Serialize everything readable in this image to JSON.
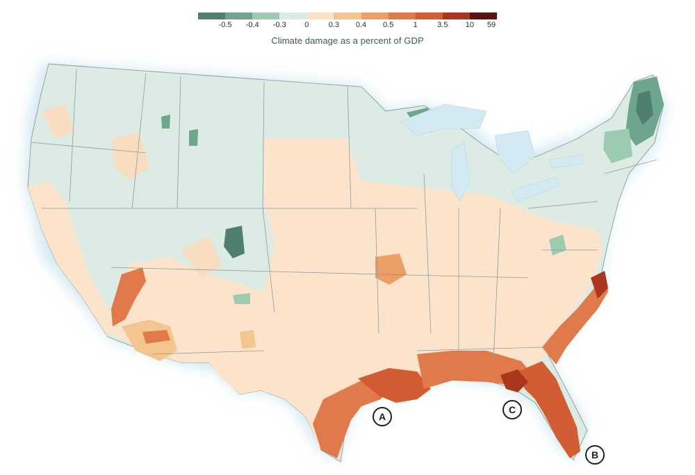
{
  "legend": {
    "title": "Climate damage as a percent of GDP",
    "colors": [
      "#4f7f6e",
      "#6da58e",
      "#9ccbb1",
      "#d9ebe2",
      "#fbe2c7",
      "#f3c58f",
      "#eb9e66",
      "#e07a4b",
      "#d25d32",
      "#a9361d",
      "#5a1410"
    ],
    "ticks": [
      "-0.5",
      "-0.4",
      "-0.3",
      "0",
      "0.3",
      "0.4",
      "0.5",
      "1",
      "3.5",
      "10",
      "59"
    ]
  },
  "palette": {
    "water": "#d3eaf3",
    "land_neutral": "#dcebe4",
    "land_light_damage": "#fbe4cb",
    "state_border": "#8f9b96"
  },
  "markers": [
    {
      "id": "A",
      "label": "A"
    },
    {
      "id": "B",
      "label": "B"
    },
    {
      "id": "C",
      "label": "C"
    }
  ]
}
